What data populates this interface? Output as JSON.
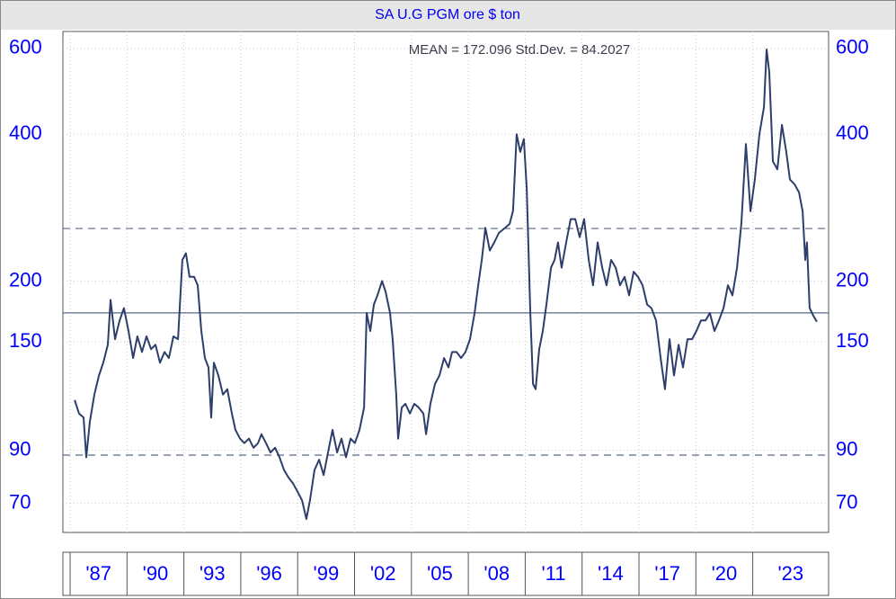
{
  "chart_data": {
    "type": "line",
    "title": "SA U.G  PGM  ore $ ton",
    "annotation": "MEAN = 172.096 Std.Dev. = 84.2027",
    "log_scale": true,
    "grid": true,
    "color": "#2d3e6b",
    "x": [
      1987.24,
      1987.47,
      1987.71,
      1987.85,
      1988.04,
      1988.28,
      1988.52,
      1988.75,
      1988.99,
      1989.13,
      1989.37,
      1989.61,
      1989.84,
      1990.08,
      1990.32,
      1990.55,
      1990.79,
      1991.03,
      1991.27,
      1991.5,
      1991.74,
      1991.98,
      1992.21,
      1992.45,
      1992.69,
      1992.92,
      1993.11,
      1993.3,
      1993.54,
      1993.73,
      1993.92,
      1994.11,
      1994.3,
      1994.44,
      1994.58,
      1994.82,
      1995.06,
      1995.29,
      1995.53,
      1995.72,
      1995.96,
      1996.19,
      1996.43,
      1996.67,
      1996.91,
      1997.09,
      1997.33,
      1997.57,
      1997.81,
      1998.04,
      1998.28,
      1998.52,
      1998.75,
      1998.99,
      1999.23,
      1999.46,
      1999.65,
      1999.89,
      2000.13,
      2000.37,
      2000.6,
      2000.84,
      2001.08,
      2001.31,
      2001.55,
      2001.79,
      2002.02,
      2002.26,
      2002.5,
      2002.64,
      2002.83,
      2003.02,
      2003.21,
      2003.45,
      2003.64,
      2003.87,
      2004.01,
      2004.2,
      2004.3,
      2004.49,
      2004.68,
      2004.92,
      2005.15,
      2005.39,
      2005.63,
      2005.77,
      2006.0,
      2006.24,
      2006.48,
      2006.72,
      2006.95,
      2007.14,
      2007.38,
      2007.62,
      2007.85,
      2008.09,
      2008.33,
      2008.52,
      2008.71,
      2008.9,
      2009.13,
      2009.37,
      2009.61,
      2009.94,
      2010.18,
      2010.36,
      2010.55,
      2010.74,
      2010.93,
      2011.08,
      2011.27,
      2011.41,
      2011.55,
      2011.74,
      2011.93,
      2012.12,
      2012.36,
      2012.55,
      2012.73,
      2012.92,
      2013.16,
      2013.4,
      2013.64,
      2013.87,
      2014.11,
      2014.35,
      2014.58,
      2014.82,
      2015.06,
      2015.29,
      2015.53,
      2015.77,
      2016.0,
      2016.24,
      2016.48,
      2016.72,
      2016.95,
      2017.19,
      2017.43,
      2017.66,
      2017.9,
      2018.14,
      2018.37,
      2018.61,
      2018.85,
      2019.09,
      2019.32,
      2019.56,
      2019.8,
      2020.03,
      2020.27,
      2020.51,
      2020.74,
      2020.98,
      2021.22,
      2021.46,
      2021.69,
      2021.93,
      2022.17,
      2022.4,
      2022.64,
      2022.88,
      2023.11,
      2023.35,
      2023.59,
      2023.73,
      2023.87,
      2024.06,
      2024.3,
      2024.54,
      2024.77,
      2024.96,
      2025.2,
      2025.44,
      2025.63,
      2025.77,
      2025.86,
      2026.0,
      2026.19,
      2026.38
    ],
    "values": [
      114,
      107,
      105,
      87,
      103,
      117,
      128,
      136,
      148,
      183,
      152,
      166,
      176,
      158,
      139,
      154,
      143,
      154,
      145,
      148,
      136,
      143,
      139,
      154,
      152,
      221,
      228,
      204,
      204,
      196,
      158,
      139,
      133,
      105,
      136,
      128,
      117,
      120,
      107,
      99,
      95,
      93,
      95,
      91,
      93,
      97,
      93,
      89,
      91,
      87,
      82,
      79,
      77,
      74,
      71,
      65,
      71,
      82,
      86,
      80,
      89,
      99,
      89,
      95,
      87,
      95,
      93,
      99,
      110,
      172,
      158,
      179,
      187,
      200,
      190,
      172,
      152,
      117,
      95,
      110,
      112,
      107,
      112,
      110,
      107,
      97,
      112,
      123,
      128,
      139,
      133,
      143,
      143,
      139,
      143,
      152,
      172,
      196,
      221,
      257,
      231,
      240,
      251,
      257,
      262,
      279,
      400,
      368,
      391,
      310,
      172,
      123,
      120,
      145,
      158,
      179,
      213,
      221,
      240,
      213,
      240,
      268,
      268,
      246,
      268,
      221,
      196,
      240,
      213,
      196,
      221,
      213,
      196,
      204,
      187,
      209,
      204,
      196,
      179,
      176,
      166,
      139,
      120,
      152,
      128,
      148,
      133,
      152,
      152,
      158,
      166,
      166,
      172,
      158,
      166,
      176,
      196,
      187,
      213,
      262,
      382,
      278,
      323,
      400,
      455,
      597,
      536,
      352,
      339,
      418,
      368,
      323,
      316,
      304,
      278,
      221,
      240,
      176,
      170,
      165
    ],
    "xlim": [
      1986.62,
      2027.0
    ],
    "ylim": [
      61,
      650
    ],
    "yticks": [
      70,
      90,
      150,
      200,
      400,
      600
    ],
    "xticks": [
      {
        "value": 1987,
        "label": "'87"
      },
      {
        "value": 1990,
        "label": "'90"
      },
      {
        "value": 1993,
        "label": "'93"
      },
      {
        "value": 1996,
        "label": "'96"
      },
      {
        "value": 1999,
        "label": "'99"
      },
      {
        "value": 2002,
        "label": "'02"
      },
      {
        "value": 2005,
        "label": "'05"
      },
      {
        "value": 2008,
        "label": "'08"
      },
      {
        "value": 2011,
        "label": "'11"
      },
      {
        "value": 2014,
        "label": "'14"
      },
      {
        "value": 2017,
        "label": "'17"
      },
      {
        "value": 2020,
        "label": "'20"
      },
      {
        "value": 2023,
        "label": "'23"
      }
    ],
    "reference_lines": [
      {
        "value": 172.096,
        "style": "solid"
      },
      {
        "value": 256.2987,
        "style": "dashed"
      },
      {
        "value": 87.8933,
        "style": "dashed"
      }
    ]
  }
}
